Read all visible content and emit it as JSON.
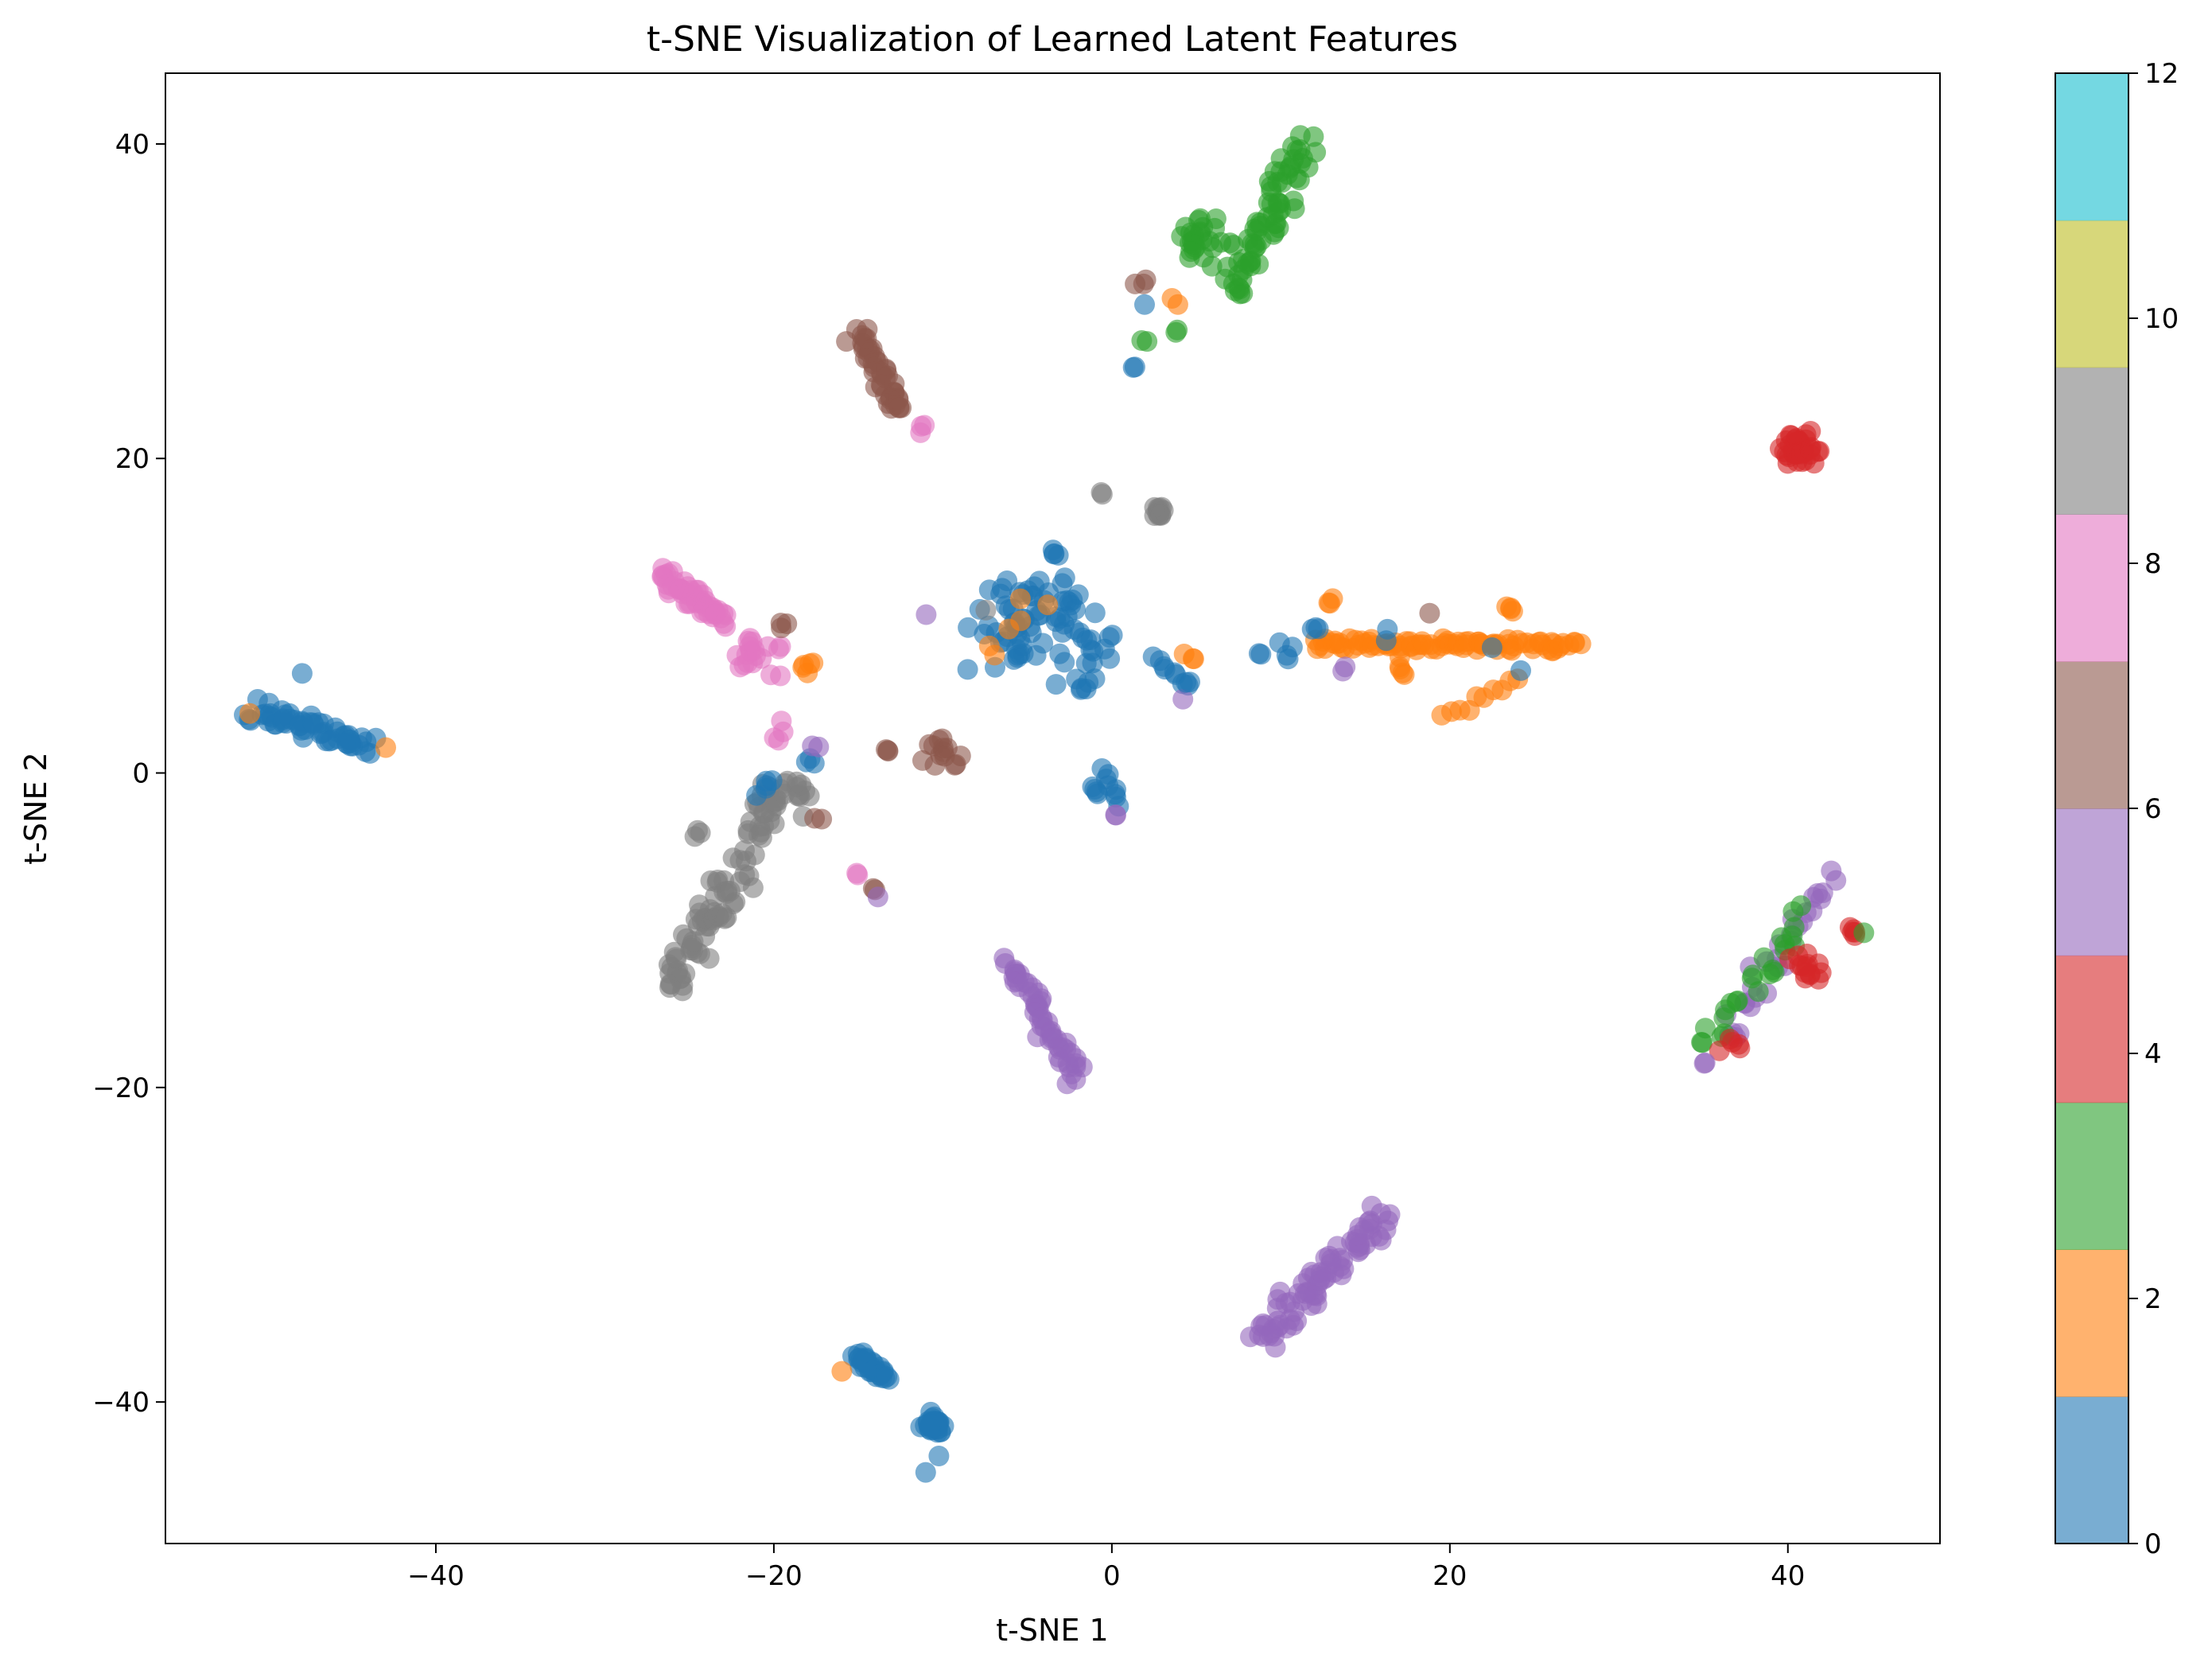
{
  "chart_data": {
    "type": "scatter",
    "title": "t-SNE Visualization of Learned Latent Features",
    "xlabel": "t-SNE 1",
    "ylabel": "t-SNE 2",
    "xlim": [
      -56,
      49
    ],
    "ylim": [
      -49,
      44.5
    ],
    "xticks": [
      -40,
      -20,
      0,
      20,
      40
    ],
    "yticks": [
      -40,
      -20,
      0,
      20,
      40
    ],
    "grid": false,
    "legend": "none",
    "colorbar": {
      "range": [
        0,
        12
      ],
      "ticks": [
        0,
        2,
        4,
        6,
        8,
        10,
        12
      ],
      "colors": [
        "#1f77b4",
        "#ff7f0e",
        "#2ca02c",
        "#d62728",
        "#9467bd",
        "#8c564b",
        "#e377c2",
        "#7f7f7f",
        "#bcbd22",
        "#17becf"
      ]
    },
    "point_alpha": 0.6,
    "clusters": [
      {
        "label": 3,
        "shape": "line",
        "from": [
          7,
          30.5
        ],
        "to": [
          11.5,
          40
        ],
        "count": 70,
        "spread": 1.1
      },
      {
        "label": 3,
        "shape": "blob",
        "center": [
          5,
          34
        ],
        "count": 25,
        "spread": 1.4
      },
      {
        "label": 6,
        "shape": "blob",
        "center": [
          1.8,
          31.3
        ],
        "count": 3,
        "spread": 0.4
      },
      {
        "label": 2,
        "shape": "blob",
        "center": [
          4,
          30
        ],
        "count": 2,
        "spread": 0.4
      },
      {
        "label": 0,
        "shape": "blob",
        "center": [
          2,
          29.8
        ],
        "count": 1,
        "spread": 0.1
      },
      {
        "label": 3,
        "shape": "blob",
        "center": [
          2,
          27.4
        ],
        "count": 2,
        "spread": 0.3
      },
      {
        "label": 3,
        "shape": "blob",
        "center": [
          3.8,
          28.2
        ],
        "count": 2,
        "spread": 0.2
      },
      {
        "label": 1,
        "shape": "blob",
        "center": [
          1.2,
          25.8
        ],
        "count": 2,
        "spread": 0.2
      },
      {
        "label": 6,
        "shape": "line",
        "from": [
          -15,
          28
        ],
        "to": [
          -12.5,
          23
        ],
        "count": 45,
        "spread": 0.7
      },
      {
        "label": 8,
        "shape": "blob",
        "center": [
          -11,
          21.8
        ],
        "count": 3,
        "spread": 0.4
      },
      {
        "label": 4,
        "shape": "blob",
        "center": [
          40.8,
          20.5
        ],
        "count": 40,
        "spread": 1.0
      },
      {
        "label": 8,
        "shape": "line",
        "from": [
          -26.5,
          12.5
        ],
        "to": [
          -23,
          9.8
        ],
        "count": 55,
        "spread": 0.7
      },
      {
        "label": 8,
        "shape": "blob",
        "center": [
          -21,
          7.5
        ],
        "count": 20,
        "spread": 1.3
      },
      {
        "label": 8,
        "shape": "blob",
        "center": [
          -19.5,
          2
        ],
        "count": 4,
        "spread": 1.2
      },
      {
        "label": 7,
        "shape": "blob",
        "center": [
          -19.5,
          9.3
        ],
        "count": 3,
        "spread": 0.5
      },
      {
        "label": 2,
        "shape": "blob",
        "center": [
          -18,
          6.8
        ],
        "count": 5,
        "spread": 0.6
      },
      {
        "label": 1,
        "shape": "line",
        "from": [
          -51,
          4
        ],
        "to": [
          -44,
          1.6
        ],
        "count": 60,
        "spread": 0.8
      },
      {
        "label": 2,
        "shape": "blob",
        "center": [
          -43,
          1.6
        ],
        "count": 1,
        "spread": 0.1
      },
      {
        "label": 2,
        "shape": "blob",
        "center": [
          -51,
          3.8
        ],
        "count": 1,
        "spread": 0.1
      },
      {
        "label": 0,
        "shape": "blob",
        "center": [
          -48,
          6.3
        ],
        "count": 1,
        "spread": 0.1
      },
      {
        "label": 9,
        "shape": "line",
        "from": [
          -26,
          -14
        ],
        "to": [
          -23,
          -7
        ],
        "count": 50,
        "spread": 1.0
      },
      {
        "label": 9,
        "shape": "line",
        "from": [
          -23,
          -9
        ],
        "to": [
          -20,
          -1
        ],
        "count": 30,
        "spread": 1.2
      },
      {
        "label": 9,
        "shape": "blob",
        "center": [
          -20,
          -2
        ],
        "count": 18,
        "spread": 1.5
      },
      {
        "label": 9,
        "shape": "blob",
        "center": [
          -24.5,
          -3.8
        ],
        "count": 3,
        "spread": 0.3
      },
      {
        "label": 9,
        "shape": "blob",
        "center": [
          -18.5,
          -1
        ],
        "count": 6,
        "spread": 1.0
      },
      {
        "label": 1,
        "shape": "blob",
        "center": [
          -20.5,
          -1
        ],
        "count": 5,
        "spread": 0.8
      },
      {
        "label": 7,
        "shape": "blob",
        "center": [
          -17.5,
          -3
        ],
        "count": 2,
        "spread": 0.3
      },
      {
        "label": 0,
        "shape": "blob",
        "center": [
          -17.8,
          0.8
        ],
        "count": 3,
        "spread": 0.4
      },
      {
        "label": 5,
        "shape": "blob",
        "center": [
          -17.5,
          1.8
        ],
        "count": 2,
        "spread": 0.3
      },
      {
        "label": 8,
        "shape": "blob",
        "center": [
          -15,
          -6.5
        ],
        "count": 2,
        "spread": 0.2
      },
      {
        "label": 7,
        "shape": "blob",
        "center": [
          -14,
          -7.5
        ],
        "count": 2,
        "spread": 0.2
      },
      {
        "label": 5,
        "shape": "blob",
        "center": [
          -13.8,
          -7.8
        ],
        "count": 1,
        "spread": 0.1
      },
      {
        "label": 7,
        "shape": "blob",
        "center": [
          -10,
          1.5
        ],
        "count": 14,
        "spread": 1.2
      },
      {
        "label": 7,
        "shape": "blob",
        "center": [
          -13,
          1.5
        ],
        "count": 3,
        "spread": 0.3
      },
      {
        "label": 5,
        "shape": "blob",
        "center": [
          -11,
          10
        ],
        "count": 1,
        "spread": 0.1
      },
      {
        "label": 0,
        "shape": "blob",
        "center": [
          -4,
          9
        ],
        "count": 45,
        "spread": 3.6
      },
      {
        "label": 1,
        "shape": "blob",
        "center": [
          -4,
          10
        ],
        "count": 35,
        "spread": 3.8
      },
      {
        "label": 2,
        "shape": "blob",
        "center": [
          -6,
          9
        ],
        "count": 6,
        "spread": 3.0
      },
      {
        "label": 9,
        "shape": "blob",
        "center": [
          2.8,
          16.6
        ],
        "count": 12,
        "spread": 0.4
      },
      {
        "label": 9,
        "shape": "blob",
        "center": [
          -0.5,
          17.8
        ],
        "count": 2,
        "spread": 0.2
      },
      {
        "label": 9,
        "shape": "blob",
        "center": [
          -7.5,
          10.3
        ],
        "count": 1,
        "spread": 0.1
      },
      {
        "label": 0,
        "shape": "blob",
        "center": [
          -3.5,
          14
        ],
        "count": 4,
        "spread": 0.4
      },
      {
        "label": 0,
        "shape": "blob",
        "center": [
          -1.5,
          5.5
        ],
        "count": 6,
        "spread": 0.6
      },
      {
        "label": 0,
        "shape": "line",
        "from": [
          2.5,
          7.5
        ],
        "to": [
          4.5,
          5.5
        ],
        "count": 8,
        "spread": 0.3
      },
      {
        "label": 2,
        "shape": "blob",
        "center": [
          4.5,
          7
        ],
        "count": 3,
        "spread": 0.8
      },
      {
        "label": 5,
        "shape": "blob",
        "center": [
          4.2,
          4.6
        ],
        "count": 1,
        "spread": 0.1
      },
      {
        "label": 1,
        "shape": "blob",
        "center": [
          4.5,
          5.7
        ],
        "count": 2,
        "spread": 0.3
      },
      {
        "label": 0,
        "shape": "line",
        "from": [
          -0.5,
          0.2
        ],
        "to": [
          0.5,
          -2
        ],
        "count": 8,
        "spread": 0.2
      },
      {
        "label": 1,
        "shape": "blob",
        "center": [
          -1,
          -1
        ],
        "count": 4,
        "spread": 0.5
      },
      {
        "label": 5,
        "shape": "blob",
        "center": [
          0.2,
          -2.7
        ],
        "count": 2,
        "spread": 0.2
      },
      {
        "label": 2,
        "shape": "line",
        "from": [
          12,
          8.2
        ],
        "to": [
          27.5,
          8.2
        ],
        "count": 90,
        "spread": 0.45
      },
      {
        "label": 2,
        "shape": "line",
        "from": [
          19.5,
          3.5
        ],
        "to": [
          24,
          6
        ],
        "count": 10,
        "spread": 0.3
      },
      {
        "label": 2,
        "shape": "blob",
        "center": [
          17,
          6.5
        ],
        "count": 5,
        "spread": 0.6
      },
      {
        "label": 2,
        "shape": "blob",
        "center": [
          23.5,
          10.5
        ],
        "count": 4,
        "spread": 0.4
      },
      {
        "label": 2,
        "shape": "blob",
        "center": [
          13,
          10.8
        ],
        "count": 3,
        "spread": 0.3
      },
      {
        "label": 0,
        "shape": "blob",
        "center": [
          10.5,
          7.9
        ],
        "count": 4,
        "spread": 0.6
      },
      {
        "label": 1,
        "shape": "blob",
        "center": [
          12,
          9
        ],
        "count": 3,
        "spread": 0.5
      },
      {
        "label": 1,
        "shape": "blob",
        "center": [
          16.5,
          8.8
        ],
        "count": 2,
        "spread": 0.3
      },
      {
        "label": 1,
        "shape": "blob",
        "center": [
          24.2,
          6.5
        ],
        "count": 1,
        "spread": 0.1
      },
      {
        "label": 0,
        "shape": "blob",
        "center": [
          22.5,
          8
        ],
        "count": 1,
        "spread": 0.1
      },
      {
        "label": 0,
        "shape": "blob",
        "center": [
          8.8,
          7.6
        ],
        "count": 2,
        "spread": 0.1
      },
      {
        "label": 5,
        "shape": "blob",
        "center": [
          13.8,
          6.5
        ],
        "count": 2,
        "spread": 0.2
      },
      {
        "label": 6,
        "shape": "blob",
        "center": [
          18.8,
          10.1
        ],
        "count": 1,
        "spread": 0.1
      },
      {
        "label": 5,
        "shape": "line",
        "from": [
          -6,
          -12
        ],
        "to": [
          -2,
          -19.5
        ],
        "count": 55,
        "spread": 0.7
      },
      {
        "label": 5,
        "shape": "line",
        "from": [
          9,
          -36
        ],
        "to": [
          16,
          -28
        ],
        "count": 80,
        "spread": 1.0
      },
      {
        "label": 5,
        "shape": "line",
        "from": [
          36.5,
          -17
        ],
        "to": [
          42.5,
          -6.5
        ],
        "count": 30,
        "spread": 0.9
      },
      {
        "label": 3,
        "shape": "line",
        "from": [
          35,
          -17.5
        ],
        "to": [
          41,
          -9
        ],
        "count": 25,
        "spread": 1.0
      },
      {
        "label": 4,
        "shape": "blob",
        "center": [
          41,
          -12.5
        ],
        "count": 14,
        "spread": 1.0
      },
      {
        "label": 4,
        "shape": "blob",
        "center": [
          43.8,
          -10
        ],
        "count": 5,
        "spread": 0.4
      },
      {
        "label": 4,
        "shape": "blob",
        "center": [
          36.5,
          -17.5
        ],
        "count": 5,
        "spread": 0.6
      },
      {
        "label": 3,
        "shape": "blob",
        "center": [
          44.5,
          -10.2
        ],
        "count": 1,
        "spread": 0.1
      },
      {
        "label": 5,
        "shape": "blob",
        "center": [
          35,
          -18.3
        ],
        "count": 2,
        "spread": 0.2
      },
      {
        "label": 0,
        "shape": "line",
        "from": [
          -15,
          -37
        ],
        "to": [
          -13.5,
          -38.5
        ],
        "count": 35,
        "spread": 0.45
      },
      {
        "label": 2,
        "shape": "blob",
        "center": [
          -16,
          -38
        ],
        "count": 1,
        "spread": 0.1
      },
      {
        "label": 0,
        "shape": "blob",
        "center": [
          -10.5,
          -41.5
        ],
        "count": 35,
        "spread": 0.6
      },
      {
        "label": 0,
        "shape": "blob",
        "center": [
          -11,
          -44.5
        ],
        "count": 1,
        "spread": 0.1
      },
      {
        "label": 0,
        "shape": "blob",
        "center": [
          -10.2,
          -43.5
        ],
        "count": 1,
        "spread": 0.1
      }
    ]
  }
}
